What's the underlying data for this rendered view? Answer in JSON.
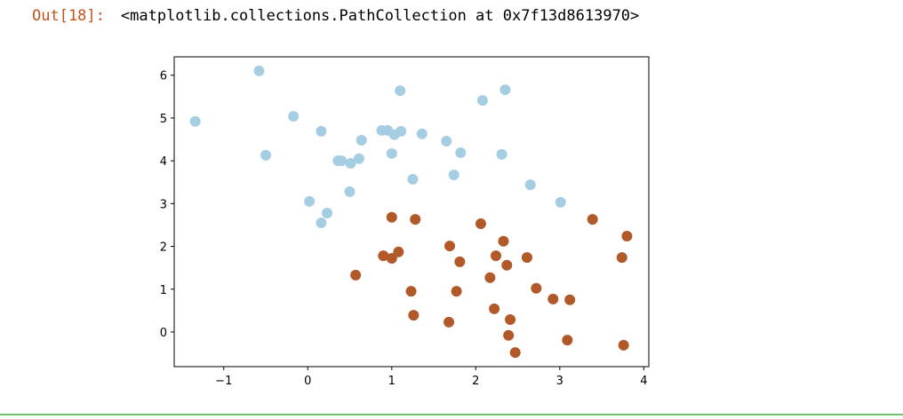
{
  "prompt": "Out[18]:",
  "output_text": "<matplotlib.collections.PathCollection at 0x7f13d8613970>",
  "chart_data": {
    "type": "scatter",
    "xlim": [
      -1.59,
      4.06
    ],
    "ylim": [
      -0.81,
      6.43
    ],
    "xticks": [
      {
        "value": -1,
        "label": "−1"
      },
      0,
      1,
      2,
      3,
      4
    ],
    "yticks": [
      0,
      1,
      2,
      3,
      4,
      5,
      6
    ],
    "series": [
      {
        "color": "#a6cee3",
        "x": [
          -1.34,
          -0.58,
          -0.5,
          -0.17,
          0.16,
          0.02,
          0.23,
          0.16,
          0.36,
          0.4,
          0.51,
          0.61,
          0.64,
          0.5,
          0.88,
          0.95,
          1.03,
          1.11,
          1.0,
          1.1,
          1.25,
          1.36,
          1.65,
          1.82,
          1.74,
          2.08,
          2.35,
          2.31,
          2.65,
          3.01
        ],
        "y": [
          4.92,
          6.1,
          4.13,
          5.04,
          4.69,
          3.05,
          2.78,
          2.55,
          4.0,
          4.0,
          3.94,
          4.05,
          4.48,
          3.28,
          4.71,
          4.71,
          4.61,
          4.69,
          4.17,
          5.64,
          3.57,
          4.63,
          4.46,
          4.19,
          3.67,
          5.41,
          5.66,
          4.15,
          3.44,
          3.03
        ]
      },
      {
        "color": "#b15928",
        "x": [
          0.57,
          0.9,
          1.0,
          1.08,
          1.0,
          1.28,
          1.23,
          1.26,
          1.69,
          1.81,
          1.77,
          1.68,
          2.06,
          2.17,
          2.24,
          2.33,
          2.37,
          2.22,
          2.41,
          2.39,
          2.47,
          2.61,
          2.72,
          2.92,
          3.12,
          3.09,
          3.39,
          3.74,
          3.8,
          3.76
        ],
        "y": [
          1.33,
          1.78,
          1.72,
          1.87,
          2.68,
          2.63,
          0.95,
          0.39,
          2.01,
          1.64,
          0.95,
          0.23,
          2.53,
          1.27,
          1.78,
          2.12,
          1.56,
          0.54,
          0.29,
          -0.08,
          -0.48,
          1.74,
          1.02,
          0.77,
          0.75,
          -0.19,
          2.63,
          1.74,
          2.24,
          -0.31
        ]
      }
    ]
  }
}
